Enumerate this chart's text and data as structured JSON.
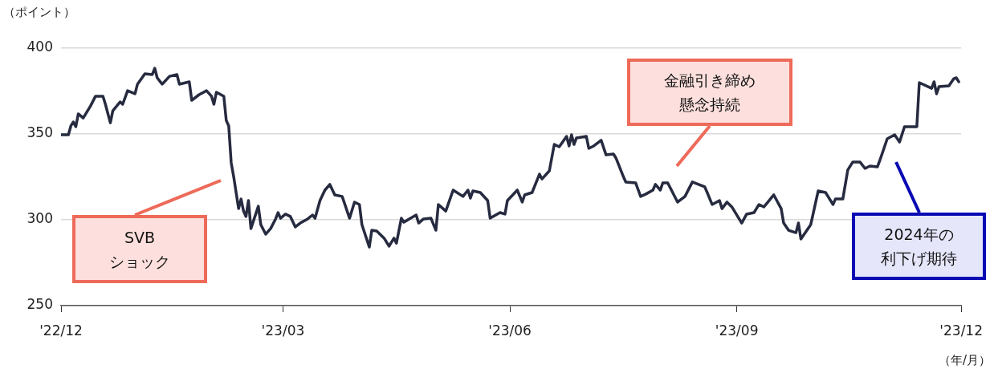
{
  "chart_data": {
    "type": "line",
    "ylabel": "（ポイント）",
    "xlabel": "（年/月）",
    "x": [
      "2022-12-01",
      "2022-12-04",
      "2022-12-05",
      "2022-12-06",
      "2022-12-07",
      "2022-12-08",
      "2022-12-10",
      "2022-12-13",
      "2022-12-15",
      "2022-12-18",
      "2022-12-19",
      "2022-12-21",
      "2022-12-22",
      "2022-12-25",
      "2022-12-26",
      "2022-12-28",
      "2022-12-31",
      "2023-01-01",
      "2023-01-04",
      "2023-01-07",
      "2023-01-08",
      "2023-01-09",
      "2023-01-11",
      "2023-01-14",
      "2023-01-17",
      "2023-01-18",
      "2023-01-22",
      "2023-01-23",
      "2023-01-26",
      "2023-01-29",
      "2023-01-31",
      "2023-02-01",
      "2023-02-02",
      "2023-02-05",
      "2023-02-06",
      "2023-02-07",
      "2023-02-08",
      "2023-02-09",
      "2023-02-11",
      "2023-02-12",
      "2023-02-13",
      "2023-02-14",
      "2023-02-15",
      "2023-02-16",
      "2023-02-19",
      "2023-02-20",
      "2023-02-22",
      "2023-02-24",
      "2023-02-26",
      "2023-02-27",
      "2023-02-28",
      "2023-03-02",
      "2023-03-04",
      "2023-03-06",
      "2023-03-08",
      "2023-03-11",
      "2023-03-13",
      "2023-03-14",
      "2023-03-16",
      "2023-03-18",
      "2023-03-20",
      "2023-03-22",
      "2023-03-25",
      "2023-03-28",
      "2023-03-30",
      "2023-04-01",
      "2023-04-02",
      "2023-04-05",
      "2023-04-06",
      "2023-04-08",
      "2023-04-11",
      "2023-04-13",
      "2023-04-15",
      "2023-04-16",
      "2023-04-18",
      "2023-04-19",
      "2023-04-24",
      "2023-04-25",
      "2023-04-27",
      "2023-04-30",
      "2023-05-02",
      "2023-05-03",
      "2023-05-06",
      "2023-05-09",
      "2023-05-13",
      "2023-05-15",
      "2023-05-16",
      "2023-05-17",
      "2023-05-20",
      "2023-05-23",
      "2023-05-24",
      "2023-05-28",
      "2023-05-30",
      "2023-05-31",
      "2023-06-04",
      "2023-06-06",
      "2023-06-07",
      "2023-06-10",
      "2023-06-13",
      "2023-06-14",
      "2023-06-17",
      "2023-06-19",
      "2023-06-21",
      "2023-06-24",
      "2023-06-25",
      "2023-06-26",
      "2023-06-27",
      "2023-06-28",
      "2023-07-02",
      "2023-07-03",
      "2023-07-05",
      "2023-07-08",
      "2023-07-10",
      "2023-07-13",
      "2023-07-14",
      "2023-07-17",
      "2023-07-18",
      "2023-07-22",
      "2023-07-24",
      "2023-07-26",
      "2023-07-29",
      "2023-07-30",
      "2023-08-01",
      "2023-08-02",
      "2023-08-04",
      "2023-08-08",
      "2023-08-11",
      "2023-08-13",
      "2023-08-14",
      "2023-08-19",
      "2023-08-20",
      "2023-08-22",
      "2023-08-25",
      "2023-08-26",
      "2023-08-28",
      "2023-08-30",
      "2023-09-03",
      "2023-09-05",
      "2023-09-08",
      "2023-09-10",
      "2023-09-12",
      "2023-09-16",
      "2023-09-19",
      "2023-09-20",
      "2023-09-22",
      "2023-09-25",
      "2023-09-26",
      "2023-09-27",
      "2023-10-01",
      "2023-10-04",
      "2023-10-07",
      "2023-10-10",
      "2023-10-11",
      "2023-10-14",
      "2023-10-16",
      "2023-10-18",
      "2023-10-21",
      "2023-10-23",
      "2023-10-25",
      "2023-10-28",
      "2023-10-29",
      "2023-11-01",
      "2023-11-04",
      "2023-11-06",
      "2023-11-08",
      "2023-11-13",
      "2023-11-14",
      "2023-11-19",
      "2023-11-20",
      "2023-11-21",
      "2023-11-22",
      "2023-11-26",
      "2023-11-28",
      "2023-11-29",
      "2023-11-30"
    ],
    "series": [
      {
        "color": "#272b40",
        "values": [
          349.5,
          349.5,
          354.7,
          357.0,
          354.2,
          361.7,
          359.3,
          366.4,
          372.0,
          372.0,
          367.3,
          356.5,
          363.5,
          368.7,
          367.3,
          375.2,
          373.4,
          379.0,
          385.0,
          384.6,
          388.3,
          382.7,
          379.0,
          383.6,
          384.6,
          379.0,
          380.4,
          369.6,
          372.9,
          375.2,
          372.0,
          367.3,
          374.3,
          372.0,
          357.9,
          354.7,
          333.2,
          325.2,
          306.5,
          312.1,
          305.1,
          301.9,
          311.2,
          294.9,
          307.9,
          297.2,
          291.6,
          294.9,
          300.5,
          304.2,
          300.9,
          303.3,
          301.9,
          295.8,
          298.1,
          300.5,
          302.8,
          300.9,
          311.2,
          317.3,
          320.6,
          314.5,
          313.6,
          300.9,
          310.3,
          308.9,
          297.2,
          284.1,
          293.9,
          293.5,
          289.3,
          284.6,
          289.3,
          286.4,
          300.9,
          298.6,
          302.8,
          298.1,
          300.5,
          300.9,
          293.9,
          308.9,
          305.1,
          317.3,
          313.6,
          317.3,
          312.6,
          316.8,
          315.9,
          311.2,
          300.9,
          304.2,
          303.3,
          311.2,
          317.3,
          310.3,
          314.5,
          315.9,
          326.6,
          323.8,
          328.5,
          343.9,
          342.5,
          348.6,
          343.0,
          349.5,
          343.9,
          347.7,
          348.6,
          341.6,
          343.0,
          346.3,
          337.8,
          338.3,
          336.0,
          325.2,
          322.0,
          321.5,
          313.6,
          314.9,
          317.3,
          320.6,
          317.3,
          321.5,
          321.5,
          310.3,
          313.6,
          319.2,
          322.0,
          319.2,
          315.9,
          308.9,
          311.2,
          306.5,
          310.3,
          307.5,
          298.1,
          303.3,
          304.2,
          308.9,
          307.5,
          314.5,
          306.5,
          298.1,
          293.9,
          292.5,
          298.1,
          288.8,
          297.2,
          316.8,
          315.9,
          308.9,
          312.1,
          312.1,
          329.0,
          333.6,
          333.6,
          329.9,
          331.3,
          330.8,
          334.6,
          347.2,
          349.5,
          345.3,
          354.2,
          354.2,
          379.9,
          376.6,
          380.4,
          373.4,
          377.6,
          378.0,
          382.2,
          382.7,
          380.4
        ]
      }
    ],
    "xlim": [
      "2022-12-01",
      "2023-12-01"
    ],
    "xticks": [
      {
        "value": "2022-12-01",
        "label": "'22/12"
      },
      {
        "value": "2023-03-01",
        "label": "'23/03"
      },
      {
        "value": "2023-06-01",
        "label": "'23/06"
      },
      {
        "value": "2023-09-01",
        "label": "'23/09"
      },
      {
        "value": "2023-12-01",
        "label": "'23/12"
      }
    ],
    "ylim": [
      250,
      400
    ],
    "yticks": [
      250,
      300,
      350,
      400
    ],
    "grid": "y",
    "legend": false,
    "marker": "none",
    "line_style": "solid",
    "annotations": [
      "SVBショック",
      "金融引き締め懸念持続",
      "2024年の利下げ期待"
    ]
  }
}
